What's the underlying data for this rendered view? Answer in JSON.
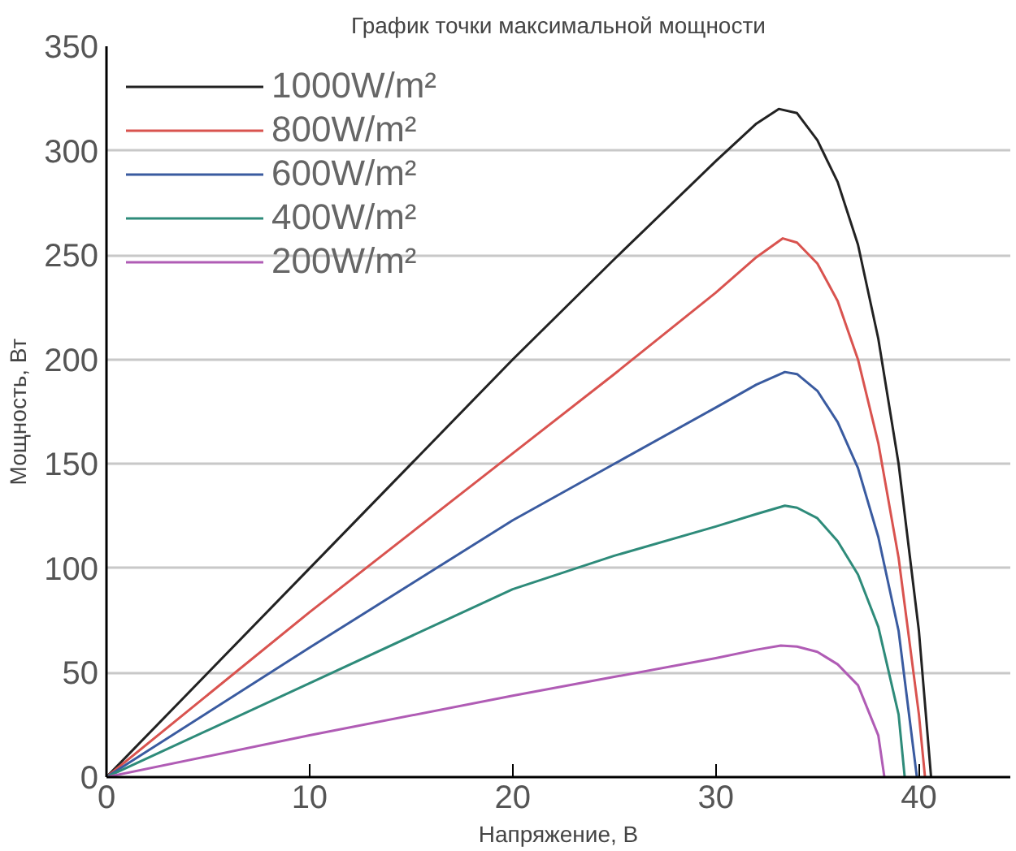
{
  "chart_data": {
    "type": "line",
    "title": "График точки максимальной мощности",
    "xlabel": "Напряжение, В",
    "ylabel": "Мощность, Вт",
    "xlim": [
      0,
      44.5
    ],
    "ylim": [
      0,
      350
    ],
    "xticks": [
      0,
      10,
      20,
      30,
      40
    ],
    "yticks": [
      0,
      50,
      100,
      150,
      200,
      250,
      300,
      350
    ],
    "grid": "y",
    "legend": "top left",
    "marker": "none",
    "line_style": "solid",
    "series": [
      {
        "name": "1000W/m²",
        "color": "#222222",
        "x": [
          0,
          10,
          20,
          25,
          30,
          32,
          33.1,
          34,
          35,
          36,
          37,
          38,
          39,
          40,
          40.6
        ],
        "values": [
          0,
          100,
          200,
          248,
          295,
          313,
          320,
          318,
          305,
          285,
          255,
          210,
          150,
          70,
          0
        ]
      },
      {
        "name": "800W/m²",
        "color": "#d9534f",
        "x": [
          0,
          10,
          20,
          25,
          30,
          32,
          33.3,
          34,
          35,
          36,
          37,
          38,
          39,
          40,
          40.3
        ],
        "values": [
          0,
          79,
          155,
          193,
          232,
          249,
          258,
          256,
          246,
          228,
          200,
          160,
          105,
          30,
          0
        ]
      },
      {
        "name": "600W/m²",
        "color": "#3a5ba0",
        "x": [
          0,
          10,
          20,
          25,
          30,
          32,
          33.4,
          34,
          35,
          36,
          37,
          38,
          39,
          39.9
        ],
        "values": [
          0,
          62,
          123,
          150,
          177,
          188,
          194,
          193,
          185,
          170,
          148,
          115,
          70,
          0
        ]
      },
      {
        "name": "400W/m²",
        "color": "#2e8b7a",
        "x": [
          0,
          10,
          20,
          25,
          30,
          32,
          33.4,
          34,
          35,
          36,
          37,
          38,
          39,
          39.3
        ],
        "values": [
          0,
          45,
          90,
          106,
          120,
          126,
          130,
          129,
          124,
          113,
          97,
          72,
          30,
          0
        ]
      },
      {
        "name": "200W/m²",
        "color": "#b05cb5",
        "x": [
          0,
          10,
          20,
          25,
          30,
          32,
          33.2,
          34,
          35,
          36,
          37,
          38,
          38.3
        ],
        "values": [
          0,
          20,
          39,
          48,
          57,
          61,
          63,
          62.5,
          60,
          54,
          44,
          20,
          0
        ]
      }
    ]
  }
}
